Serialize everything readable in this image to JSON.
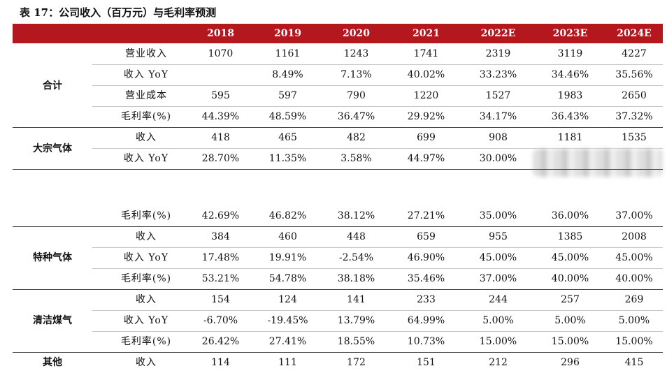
{
  "title": "表 17：公司收入（百万元）与毛利率预测",
  "header": [
    "",
    "",
    "2018",
    "2019",
    "2020",
    "2021",
    "2022E",
    "2023E",
    "2024E"
  ],
  "groups": [
    {
      "name": "合计",
      "rows": [
        {
          "metric": "营业收入",
          "values": [
            "1070",
            "1161",
            "1243",
            "1741",
            "2319",
            "3119",
            "4227"
          ]
        },
        {
          "metric": "收入 YoY",
          "values": [
            "",
            "8.49%",
            "7.13%",
            "40.02%",
            "33.23%",
            "34.46%",
            "35.56%"
          ]
        },
        {
          "metric": "营业成本",
          "values": [
            "595",
            "597",
            "790",
            "1220",
            "1527",
            "1983",
            "2650"
          ]
        },
        {
          "metric": "毛利率(%)",
          "values": [
            "44.39%",
            "48.59%",
            "36.47%",
            "29.92%",
            "34.17%",
            "36.43%",
            "37.32%"
          ]
        }
      ]
    },
    {
      "name": "大宗气体",
      "rows": [
        {
          "metric": "收入",
          "values": [
            "418",
            "465",
            "482",
            "699",
            "908",
            "1181",
            "1535"
          ]
        },
        {
          "metric": "收入 YoY",
          "values": [
            "28.70%",
            "11.35%",
            "3.58%",
            "44.97%",
            "30.00%",
            "",
            ""
          ]
        },
        {
          "metric": "毛利率(%)",
          "values": [
            "42.69%",
            "46.82%",
            "38.12%",
            "27.21%",
            "35.00%",
            "36.00%",
            "37.00%"
          ]
        }
      ]
    },
    {
      "name": "特种气体",
      "rows": [
        {
          "metric": "收入",
          "values": [
            "384",
            "460",
            "448",
            "659",
            "955",
            "1385",
            "2008"
          ]
        },
        {
          "metric": "收入 YoY",
          "values": [
            "17.48%",
            "19.91%",
            "-2.54%",
            "46.90%",
            "45.00%",
            "45.00%",
            "45.00%"
          ]
        },
        {
          "metric": "毛利率(%)",
          "values": [
            "53.21%",
            "54.78%",
            "38.18%",
            "35.46%",
            "37.00%",
            "40.00%",
            "40.00%"
          ]
        }
      ]
    },
    {
      "name": "清洁煤气",
      "rows": [
        {
          "metric": "收入",
          "values": [
            "154",
            "124",
            "141",
            "233",
            "244",
            "257",
            "269"
          ]
        },
        {
          "metric": "收入 YoY",
          "values": [
            "-6.70%",
            "-19.45%",
            "13.79%",
            "64.99%",
            "5.00%",
            "5.00%",
            "5.00%"
          ]
        },
        {
          "metric": "毛利率(%)",
          "values": [
            "26.42%",
            "27.41%",
            "18.55%",
            "10.73%",
            "15.00%",
            "15.00%",
            "15.00%"
          ]
        }
      ]
    },
    {
      "name": "其他",
      "rows": [
        {
          "metric": "收入",
          "values": [
            "114",
            "111",
            "172",
            "151",
            "212",
            "296",
            "415"
          ]
        }
      ]
    }
  ]
}
